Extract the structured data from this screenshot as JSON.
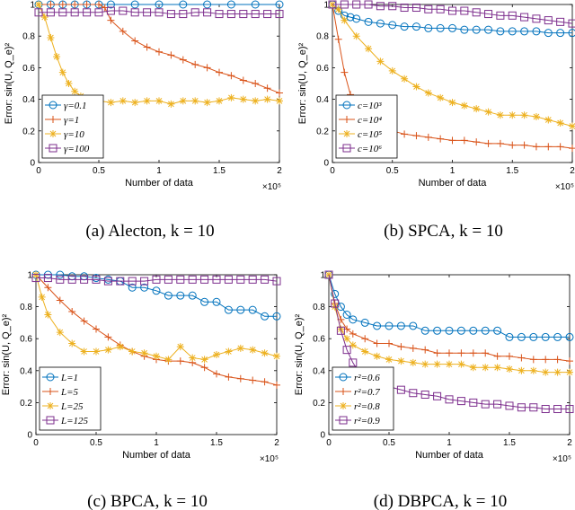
{
  "chart_data": [
    {
      "type": "line",
      "caption": "(a) Alecton, k = 10",
      "xlabel": "Number of data",
      "ylabel": "Error: sin(U, Q_e)²",
      "x_multiplier": "×10⁵",
      "xlim": [
        0,
        2
      ],
      "ylim": [
        0,
        1
      ],
      "xticks": [
        "0",
        "0.5",
        "1",
        "1.5",
        "2"
      ],
      "yticks": [
        "0",
        "0.2",
        "0.4",
        "0.6",
        "0.8",
        "1"
      ],
      "legend_position": "bottom-left",
      "series": [
        {
          "name": "γ=0.1",
          "color": "#0072BD",
          "marker": "circle",
          "x": [
            0,
            0.1,
            0.2,
            0.3,
            0.4,
            0.5,
            0.6,
            0.8,
            1.0,
            1.2,
            1.4,
            1.6,
            1.8,
            2.0
          ],
          "y": [
            1,
            1,
            1,
            1,
            1,
            1,
            1,
            1,
            1,
            1,
            1,
            1,
            1,
            1
          ]
        },
        {
          "name": "γ=1",
          "color": "#D95319",
          "marker": "plus",
          "x": [
            0,
            0.1,
            0.2,
            0.3,
            0.4,
            0.5,
            0.55,
            0.6,
            0.7,
            0.8,
            0.9,
            1.0,
            1.1,
            1.2,
            1.3,
            1.4,
            1.5,
            1.6,
            1.7,
            1.8,
            1.9,
            2.0
          ],
          "y": [
            1,
            1,
            1,
            1,
            1,
            1,
            0.98,
            0.9,
            0.83,
            0.77,
            0.73,
            0.7,
            0.68,
            0.65,
            0.62,
            0.6,
            0.57,
            0.55,
            0.52,
            0.5,
            0.47,
            0.44
          ]
        },
        {
          "name": "γ=10",
          "color": "#EDB120",
          "marker": "star",
          "x": [
            0,
            0.05,
            0.1,
            0.15,
            0.2,
            0.25,
            0.3,
            0.35,
            0.4,
            0.5,
            0.6,
            0.7,
            0.8,
            0.9,
            1.0,
            1.1,
            1.2,
            1.3,
            1.4,
            1.5,
            1.6,
            1.7,
            1.8,
            1.9,
            2.0
          ],
          "y": [
            1,
            0.92,
            0.79,
            0.67,
            0.57,
            0.5,
            0.45,
            0.42,
            0.4,
            0.39,
            0.38,
            0.39,
            0.38,
            0.39,
            0.39,
            0.37,
            0.39,
            0.39,
            0.38,
            0.39,
            0.41,
            0.4,
            0.39,
            0.4,
            0.39
          ]
        },
        {
          "name": "γ=100",
          "color": "#7E2F8E",
          "marker": "square",
          "x": [
            0,
            0.1,
            0.2,
            0.3,
            0.4,
            0.5,
            0.6,
            0.7,
            0.8,
            0.9,
            1.0,
            1.1,
            1.2,
            1.3,
            1.4,
            1.5,
            1.6,
            1.7,
            1.8,
            1.9,
            2.0
          ],
          "y": [
            0.95,
            0.95,
            0.95,
            0.95,
            0.95,
            0.95,
            0.96,
            0.96,
            0.95,
            0.95,
            0.95,
            0.94,
            0.94,
            0.95,
            0.95,
            0.94,
            0.94,
            0.94,
            0.94,
            0.94,
            0.94
          ]
        }
      ]
    },
    {
      "type": "line",
      "caption": "(b) SPCA, k = 10",
      "xlabel": "Number of data",
      "ylabel": "Error: sin(U, Q_e)²",
      "x_multiplier": "×10⁵",
      "xlim": [
        0,
        2
      ],
      "ylim": [
        0,
        1
      ],
      "xticks": [
        "0",
        "0.5",
        "1",
        "1.5",
        "2"
      ],
      "yticks": [
        "0",
        "0.2",
        "0.4",
        "0.6",
        "0.8",
        "1"
      ],
      "legend_position": "bottom-left",
      "series": [
        {
          "name": "c=10³",
          "color": "#0072BD",
          "marker": "circle",
          "x": [
            0,
            0.05,
            0.1,
            0.15,
            0.2,
            0.3,
            0.4,
            0.5,
            0.6,
            0.7,
            0.8,
            0.9,
            1.0,
            1.1,
            1.2,
            1.3,
            1.4,
            1.5,
            1.6,
            1.7,
            1.8,
            1.9,
            2.0
          ],
          "y": [
            1,
            0.96,
            0.93,
            0.92,
            0.91,
            0.89,
            0.88,
            0.87,
            0.86,
            0.86,
            0.85,
            0.85,
            0.85,
            0.84,
            0.84,
            0.84,
            0.83,
            0.83,
            0.83,
            0.83,
            0.82,
            0.82,
            0.82
          ]
        },
        {
          "name": "c=10⁴",
          "color": "#D95319",
          "marker": "plus",
          "x": [
            0,
            0.05,
            0.1,
            0.15,
            0.2,
            0.25,
            0.3,
            0.4,
            0.5,
            0.6,
            0.7,
            0.8,
            0.9,
            1.0,
            1.1,
            1.2,
            1.3,
            1.4,
            1.5,
            1.6,
            1.7,
            1.8,
            1.9,
            2.0
          ],
          "y": [
            1,
            0.78,
            0.57,
            0.43,
            0.34,
            0.29,
            0.26,
            0.22,
            0.2,
            0.18,
            0.17,
            0.16,
            0.15,
            0.14,
            0.14,
            0.13,
            0.12,
            0.12,
            0.11,
            0.11,
            0.1,
            0.1,
            0.1,
            0.09
          ]
        },
        {
          "name": "c=10⁵",
          "color": "#EDB120",
          "marker": "star",
          "x": [
            0,
            0.05,
            0.1,
            0.2,
            0.3,
            0.4,
            0.5,
            0.6,
            0.7,
            0.8,
            0.9,
            1.0,
            1.1,
            1.2,
            1.3,
            1.4,
            1.5,
            1.6,
            1.7,
            1.8,
            1.9,
            2.0
          ],
          "y": [
            1,
            0.97,
            0.9,
            0.8,
            0.72,
            0.64,
            0.58,
            0.53,
            0.48,
            0.44,
            0.41,
            0.38,
            0.36,
            0.34,
            0.32,
            0.3,
            0.3,
            0.3,
            0.29,
            0.27,
            0.25,
            0.23
          ]
        },
        {
          "name": "c=10⁶",
          "color": "#7E2F8E",
          "marker": "square",
          "x": [
            0,
            0.1,
            0.2,
            0.3,
            0.4,
            0.5,
            0.6,
            0.7,
            0.8,
            0.9,
            1.0,
            1.1,
            1.2,
            1.3,
            1.4,
            1.5,
            1.6,
            1.7,
            1.8,
            1.9,
            2.0
          ],
          "y": [
            1,
            1,
            1,
            1,
            0.99,
            0.99,
            0.98,
            0.98,
            0.97,
            0.97,
            0.96,
            0.96,
            0.95,
            0.94,
            0.93,
            0.93,
            0.92,
            0.91,
            0.9,
            0.89,
            0.88
          ]
        }
      ]
    },
    {
      "type": "line",
      "caption": "(c) BPCA, k = 10",
      "xlabel": "Number of data",
      "ylabel": "Error: sin(U, Q_e)²",
      "x_multiplier": "×10⁵",
      "xlim": [
        0,
        2
      ],
      "ylim": [
        0,
        1
      ],
      "xticks": [
        "0",
        "0.5",
        "1",
        "1.5",
        "2"
      ],
      "yticks": [
        "0",
        "0.2",
        "0.4",
        "0.6",
        "0.8",
        "1"
      ],
      "legend_position": "bottom-left",
      "series": [
        {
          "name": "L=1",
          "color": "#0072BD",
          "marker": "circle",
          "x": [
            0,
            0.1,
            0.2,
            0.3,
            0.4,
            0.5,
            0.6,
            0.7,
            0.8,
            0.9,
            1.0,
            1.1,
            1.2,
            1.3,
            1.4,
            1.5,
            1.6,
            1.7,
            1.8,
            1.9,
            2.0
          ],
          "y": [
            1,
            1,
            1,
            0.99,
            0.99,
            0.98,
            0.97,
            0.96,
            0.92,
            0.92,
            0.9,
            0.87,
            0.87,
            0.87,
            0.83,
            0.83,
            0.78,
            0.78,
            0.78,
            0.74,
            0.74
          ]
        },
        {
          "name": "L=5",
          "color": "#D95319",
          "marker": "plus",
          "x": [
            0,
            0.1,
            0.2,
            0.3,
            0.4,
            0.5,
            0.6,
            0.7,
            0.8,
            0.9,
            1.0,
            1.1,
            1.2,
            1.3,
            1.4,
            1.5,
            1.6,
            1.7,
            1.8,
            1.9,
            2.0
          ],
          "y": [
            1,
            0.92,
            0.84,
            0.77,
            0.71,
            0.66,
            0.61,
            0.56,
            0.52,
            0.49,
            0.47,
            0.46,
            0.46,
            0.45,
            0.42,
            0.38,
            0.36,
            0.35,
            0.34,
            0.33,
            0.31
          ]
        },
        {
          "name": "L=25",
          "color": "#EDB120",
          "marker": "star",
          "x": [
            0,
            0.05,
            0.1,
            0.2,
            0.3,
            0.4,
            0.5,
            0.6,
            0.7,
            0.8,
            0.9,
            1.0,
            1.1,
            1.2,
            1.3,
            1.4,
            1.5,
            1.6,
            1.7,
            1.8,
            1.9,
            2.0
          ],
          "y": [
            1,
            0.86,
            0.75,
            0.64,
            0.57,
            0.52,
            0.52,
            0.53,
            0.55,
            0.52,
            0.51,
            0.49,
            0.47,
            0.55,
            0.48,
            0.47,
            0.5,
            0.52,
            0.54,
            0.53,
            0.51,
            0.49
          ]
        },
        {
          "name": "L=125",
          "color": "#7E2F8E",
          "marker": "square",
          "x": [
            0,
            0.1,
            0.2,
            0.3,
            0.4,
            0.5,
            0.6,
            0.7,
            0.8,
            0.9,
            1.0,
            1.1,
            1.2,
            1.3,
            1.4,
            1.5,
            1.6,
            1.7,
            1.8,
            1.9,
            2.0
          ],
          "y": [
            0.98,
            0.98,
            0.97,
            0.97,
            0.97,
            0.97,
            0.96,
            0.96,
            0.96,
            0.96,
            0.97,
            0.97,
            0.97,
            0.97,
            0.97,
            0.97,
            0.97,
            0.97,
            0.97,
            0.97,
            0.96
          ]
        }
      ]
    },
    {
      "type": "line",
      "caption": "(d) DBPCA, k = 10",
      "xlabel": "Number of data",
      "ylabel": "Error: sin(U, Q_e)²",
      "x_multiplier": "×10⁵",
      "xlim": [
        0,
        2
      ],
      "ylim": [
        0,
        1
      ],
      "xticks": [
        "0",
        "0.5",
        "1",
        "1.5",
        "2"
      ],
      "yticks": [
        "0",
        "0.2",
        "0.4",
        "0.6",
        "0.8",
        "1"
      ],
      "legend_position": "bottom-left",
      "series": [
        {
          "name": "r²=0.6",
          "color": "#0072BD",
          "marker": "circle",
          "x": [
            0,
            0.05,
            0.1,
            0.15,
            0.2,
            0.3,
            0.4,
            0.5,
            0.6,
            0.7,
            0.8,
            0.9,
            1.0,
            1.1,
            1.2,
            1.3,
            1.4,
            1.5,
            1.6,
            1.7,
            1.8,
            1.9,
            2.0
          ],
          "y": [
            1,
            0.88,
            0.8,
            0.75,
            0.72,
            0.7,
            0.68,
            0.68,
            0.68,
            0.68,
            0.65,
            0.65,
            0.65,
            0.65,
            0.65,
            0.65,
            0.65,
            0.61,
            0.61,
            0.61,
            0.61,
            0.61,
            0.61
          ]
        },
        {
          "name": "r²=0.7",
          "color": "#D95319",
          "marker": "plus",
          "x": [
            0,
            0.05,
            0.1,
            0.15,
            0.2,
            0.3,
            0.4,
            0.5,
            0.6,
            0.7,
            0.8,
            0.9,
            1.0,
            1.1,
            1.2,
            1.3,
            1.4,
            1.5,
            1.6,
            1.7,
            1.8,
            1.9,
            2.0
          ],
          "y": [
            1,
            0.82,
            0.72,
            0.66,
            0.63,
            0.6,
            0.57,
            0.57,
            0.55,
            0.54,
            0.53,
            0.51,
            0.51,
            0.51,
            0.51,
            0.51,
            0.49,
            0.49,
            0.48,
            0.47,
            0.47,
            0.47,
            0.46
          ]
        },
        {
          "name": "r²=0.8",
          "color": "#EDB120",
          "marker": "star",
          "x": [
            0,
            0.05,
            0.1,
            0.15,
            0.2,
            0.3,
            0.4,
            0.5,
            0.6,
            0.7,
            0.8,
            0.9,
            1.0,
            1.1,
            1.2,
            1.3,
            1.4,
            1.5,
            1.6,
            1.7,
            1.8,
            1.9,
            2.0
          ],
          "y": [
            1,
            0.8,
            0.66,
            0.6,
            0.56,
            0.52,
            0.49,
            0.47,
            0.46,
            0.45,
            0.44,
            0.44,
            0.44,
            0.44,
            0.42,
            0.42,
            0.42,
            0.41,
            0.4,
            0.4,
            0.39,
            0.39,
            0.39
          ]
        },
        {
          "name": "r²=0.9",
          "color": "#7E2F8E",
          "marker": "square",
          "x": [
            0,
            0.05,
            0.1,
            0.15,
            0.2,
            0.25,
            0.3,
            0.35,
            0.4,
            0.5,
            0.6,
            0.7,
            0.8,
            0.9,
            1.0,
            1.1,
            1.2,
            1.3,
            1.4,
            1.5,
            1.6,
            1.7,
            1.8,
            1.9,
            2.0
          ],
          "y": [
            1,
            0.82,
            0.65,
            0.53,
            0.45,
            0.39,
            0.35,
            0.33,
            0.32,
            0.3,
            0.28,
            0.26,
            0.25,
            0.24,
            0.22,
            0.21,
            0.2,
            0.19,
            0.19,
            0.18,
            0.17,
            0.17,
            0.16,
            0.16,
            0.16
          ]
        }
      ]
    }
  ]
}
